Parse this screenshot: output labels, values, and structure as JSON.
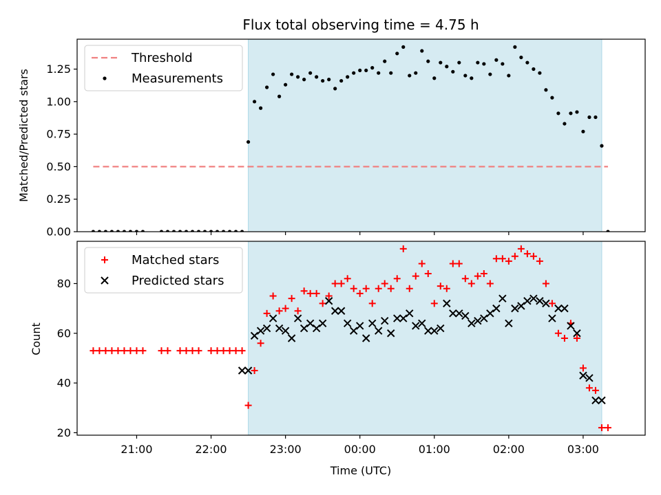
{
  "chart_data": [
    {
      "type": "scatter",
      "title": "Flux total observing time = 4.75 h",
      "xlabel": "",
      "ylabel": "Matched/Predicted stars",
      "ylim": [
        0,
        1.48
      ],
      "yticks": [
        0.0,
        0.25,
        0.5,
        0.75,
        1.0,
        1.25
      ],
      "ytick_labels": [
        "0.00",
        "0.25",
        "0.50",
        "0.75",
        "1.00",
        "1.25"
      ],
      "xlim": [
        "20:12",
        "03:50"
      ],
      "xticks": [
        "21:00",
        "22:00",
        "23:00",
        "00:00",
        "01:00",
        "02:00",
        "03:00"
      ],
      "shaded_region": {
        "start": "22:30",
        "end": "03:15",
        "color": "#add8e6"
      },
      "threshold": {
        "name": "Threshold",
        "value": 0.5,
        "x_start": "20:25",
        "x_end": "03:20",
        "color": "#f08080"
      },
      "legend": {
        "placement": "upper-left",
        "entries": [
          "Threshold",
          "Measurements"
        ]
      },
      "series": [
        {
          "name": "Measurements",
          "color": "#000000",
          "marker": "dot",
          "x": [
            "20:25",
            "20:30",
            "20:35",
            "20:40",
            "20:45",
            "20:50",
            "20:55",
            "21:00",
            "21:05",
            "21:20",
            "21:25",
            "21:30",
            "21:35",
            "21:40",
            "21:45",
            "21:50",
            "21:55",
            "22:00",
            "22:05",
            "22:10",
            "22:15",
            "22:20",
            "22:25",
            "22:30",
            "22:35",
            "22:40",
            "22:45",
            "22:50",
            "22:55",
            "23:00",
            "23:05",
            "23:10",
            "23:15",
            "23:20",
            "23:25",
            "23:30",
            "23:35",
            "23:40",
            "23:45",
            "23:50",
            "23:55",
            "00:00",
            "00:05",
            "00:10",
            "00:15",
            "00:20",
            "00:25",
            "00:30",
            "00:35",
            "00:40",
            "00:45",
            "00:50",
            "00:55",
            "01:00",
            "01:05",
            "01:10",
            "01:15",
            "01:20",
            "01:25",
            "01:30",
            "01:35",
            "01:40",
            "01:45",
            "01:50",
            "01:55",
            "02:00",
            "02:05",
            "02:10",
            "02:15",
            "02:20",
            "02:25",
            "02:30",
            "02:35",
            "02:40",
            "02:45",
            "02:50",
            "02:55",
            "03:00",
            "03:05",
            "03:10",
            "03:15",
            "03:20"
          ],
          "y": [
            0.0,
            0.0,
            0.0,
            0.0,
            0.0,
            0.0,
            0.0,
            0.0,
            0.0,
            0.0,
            0.0,
            0.0,
            0.0,
            0.0,
            0.0,
            0.0,
            0.0,
            0.0,
            0.0,
            0.0,
            0.0,
            0.0,
            0.0,
            0.69,
            1.0,
            0.95,
            1.11,
            1.21,
            1.04,
            1.13,
            1.21,
            1.19,
            1.17,
            1.22,
            1.19,
            1.16,
            1.17,
            1.1,
            1.16,
            1.19,
            1.22,
            1.24,
            1.24,
            1.26,
            1.22,
            1.31,
            1.22,
            1.37,
            1.42,
            1.2,
            1.22,
            1.39,
            1.31,
            1.18,
            1.3,
            1.27,
            1.23,
            1.3,
            1.2,
            1.18,
            1.3,
            1.29,
            1.21,
            1.32,
            1.29,
            1.2,
            1.42,
            1.34,
            1.3,
            1.25,
            1.22,
            1.09,
            1.03,
            0.91,
            0.83,
            0.91,
            0.92,
            0.77,
            0.88,
            0.88,
            0.66,
            0.0
          ]
        }
      ]
    },
    {
      "type": "scatter",
      "title": "",
      "xlabel": "Time (UTC)",
      "ylabel": "Count",
      "ylim": [
        19,
        97
      ],
      "yticks": [
        20,
        40,
        60,
        80
      ],
      "ytick_labels": [
        "20",
        "40",
        "60",
        "80"
      ],
      "xlim": [
        "20:12",
        "03:50"
      ],
      "xticks": [
        "21:00",
        "22:00",
        "23:00",
        "00:00",
        "01:00",
        "02:00",
        "03:00"
      ],
      "xtick_labels": [
        "21:00",
        "22:00",
        "23:00",
        "00:00",
        "01:00",
        "02:00",
        "03:00"
      ],
      "shaded_region": {
        "start": "22:30",
        "end": "03:15",
        "color": "#add8e6"
      },
      "legend": {
        "placement": "upper-left",
        "entries": [
          "Matched stars",
          "Predicted stars"
        ]
      },
      "series": [
        {
          "name": "Matched stars",
          "color": "#ff0000",
          "marker": "plus",
          "x": [
            "20:25",
            "20:30",
            "20:35",
            "20:40",
            "20:45",
            "20:50",
            "20:55",
            "21:00",
            "21:05",
            "21:20",
            "21:25",
            "21:35",
            "21:40",
            "21:45",
            "21:50",
            "22:00",
            "22:05",
            "22:10",
            "22:15",
            "22:20",
            "22:25",
            "22:30",
            "22:35",
            "22:40",
            "22:45",
            "22:50",
            "22:55",
            "23:00",
            "23:05",
            "23:10",
            "23:15",
            "23:20",
            "23:25",
            "23:30",
            "23:35",
            "23:40",
            "23:45",
            "23:50",
            "23:55",
            "00:00",
            "00:05",
            "00:10",
            "00:15",
            "00:20",
            "00:25",
            "00:30",
            "00:35",
            "00:40",
            "00:45",
            "00:50",
            "00:55",
            "01:00",
            "01:05",
            "01:10",
            "01:15",
            "01:20",
            "01:25",
            "01:30",
            "01:35",
            "01:40",
            "01:45",
            "01:50",
            "01:55",
            "02:00",
            "02:05",
            "02:10",
            "02:15",
            "02:20",
            "02:25",
            "02:30",
            "02:35",
            "02:40",
            "02:45",
            "02:50",
            "02:55",
            "03:00",
            "03:05",
            "03:10",
            "03:15",
            "03:20"
          ],
          "y": [
            53,
            53,
            53,
            53,
            53,
            53,
            53,
            53,
            53,
            53,
            53,
            53,
            53,
            53,
            53,
            53,
            53,
            53,
            53,
            53,
            53,
            31,
            45,
            56,
            68,
            75,
            69,
            70,
            74,
            69,
            77,
            76,
            76,
            72,
            75,
            80,
            80,
            82,
            78,
            76,
            78,
            72,
            78,
            80,
            78,
            82,
            94,
            78,
            83,
            88,
            84,
            72,
            79,
            78,
            88,
            88,
            82,
            80,
            83,
            84,
            80,
            90,
            90,
            89,
            91,
            94,
            92,
            91,
            89,
            80,
            72,
            60,
            58,
            64,
            58,
            46,
            38,
            37,
            22,
            22
          ]
        },
        {
          "name": "Predicted stars",
          "color": "#000000",
          "marker": "x",
          "x": [
            "22:25",
            "22:30",
            "22:35",
            "22:40",
            "22:45",
            "22:50",
            "22:55",
            "23:00",
            "23:05",
            "23:10",
            "23:15",
            "23:20",
            "23:25",
            "23:30",
            "23:35",
            "23:40",
            "23:45",
            "23:50",
            "23:55",
            "00:00",
            "00:05",
            "00:10",
            "00:15",
            "00:20",
            "00:25",
            "00:30",
            "00:35",
            "00:40",
            "00:45",
            "00:50",
            "00:55",
            "01:00",
            "01:05",
            "01:10",
            "01:15",
            "01:20",
            "01:25",
            "01:30",
            "01:35",
            "01:40",
            "01:45",
            "01:50",
            "01:55",
            "02:00",
            "02:05",
            "02:10",
            "02:15",
            "02:20",
            "02:25",
            "02:30",
            "02:35",
            "02:40",
            "02:45",
            "02:50",
            "02:55",
            "03:00",
            "03:05",
            "03:10",
            "03:15"
          ],
          "y": [
            45,
            45,
            59,
            61,
            62,
            66,
            62,
            61,
            58,
            66,
            62,
            64,
            62,
            64,
            73,
            69,
            69,
            64,
            61,
            63,
            58,
            64,
            61,
            65,
            60,
            66,
            66,
            68,
            63,
            64,
            61,
            61,
            62,
            72,
            68,
            68,
            67,
            64,
            65,
            66,
            68,
            70,
            74,
            64,
            70,
            71,
            73,
            74,
            73,
            72,
            66,
            70,
            70,
            63,
            60,
            43,
            42,
            33,
            33
          ]
        }
      ]
    }
  ]
}
